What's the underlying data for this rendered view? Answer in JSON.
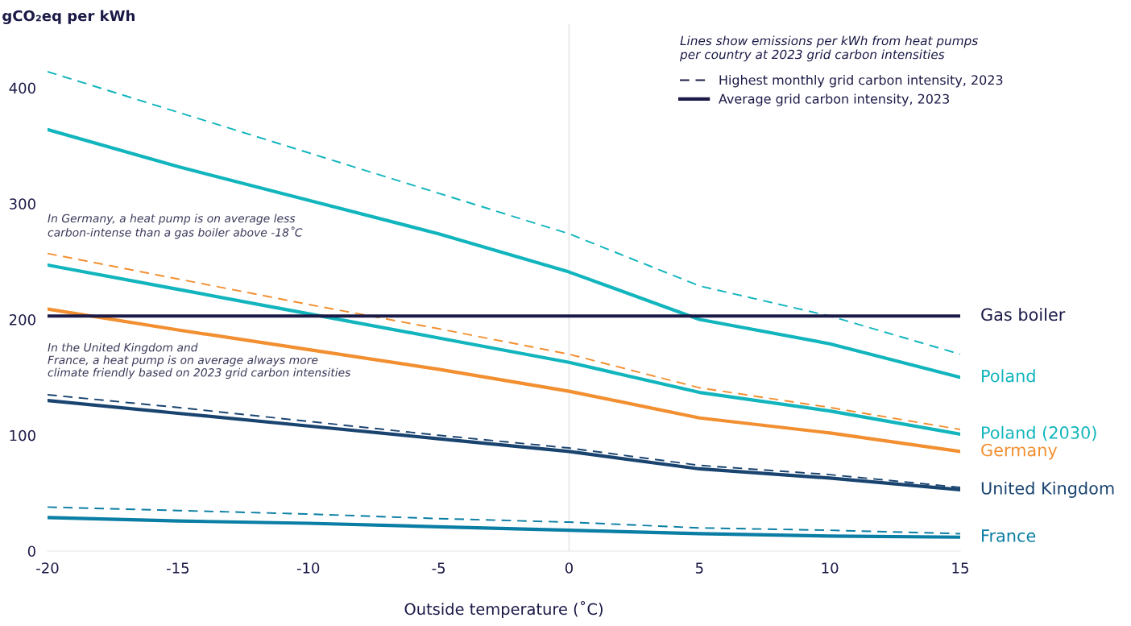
{
  "chart_data": {
    "type": "line",
    "xlabel": "Outside temperature (˚C)",
    "ylabel": "gCO₂eq per kWh",
    "x": [
      -20,
      -15,
      -10,
      -5,
      0,
      5,
      10,
      15
    ],
    "xlim": [
      -20,
      15
    ],
    "xticks": [
      -20,
      -15,
      -10,
      -5,
      0,
      5,
      10,
      15
    ],
    "ylim": [
      0,
      455
    ],
    "yticks": [
      0,
      100,
      200,
      300,
      400
    ],
    "grid": false,
    "legend": "right",
    "legend_title": "Lines show emissions per kWh from heat pumps\nper country at 2023 grid carbon intensities",
    "annotations": [
      "Highest monthly grid carbon intensity, 2023",
      "Average grid carbon intensity, 2023",
      "In Germany, a heat pump is on average less\ncarbon-intense than a gas boiler above -18˚C",
      "In the United Kingdom and\nFrance, a heat pump is on average always more\nclimate friendly based on 2023 grid carbon intensities"
    ],
    "ref_lines": [
      {
        "axis": "x",
        "value": 0,
        "color": "#e6e6e6"
      }
    ],
    "series": [
      {
        "color": "#12b5bd",
        "line_style": "dashed",
        "values": [
          414,
          379,
          344,
          309,
          274,
          229,
          203,
          170
        ]
      },
      {
        "name": "Poland",
        "color": "#12b5bd",
        "line_style": "solid",
        "values": [
          364,
          332,
          303,
          274,
          241,
          200,
          179,
          150
        ]
      },
      {
        "name": "Poland (2030)",
        "color": "#12b5bd",
        "line_style": "solid",
        "values": [
          247,
          226,
          205,
          184,
          163,
          137,
          121,
          101
        ]
      },
      {
        "color": "#f28f30",
        "line_style": "dashed",
        "values": [
          257,
          235,
          213,
          192,
          170,
          141,
          124,
          105
        ]
      },
      {
        "name": "Germany",
        "color": "#f28f30",
        "line_style": "solid",
        "values": [
          209,
          191,
          174,
          157,
          138,
          115,
          102,
          86
        ]
      },
      {
        "name": "Gas boiler",
        "color": "#1b1a47",
        "line_style": "solid",
        "values": [
          203,
          203,
          203,
          203,
          203,
          203,
          203,
          203
        ]
      },
      {
        "color": "#1a4470",
        "line_style": "dashed",
        "values": [
          135,
          124,
          112,
          100,
          89,
          74,
          66,
          55
        ]
      },
      {
        "name": "United Kingdom",
        "color": "#1a4470",
        "line_style": "solid",
        "values": [
          130,
          119,
          108,
          97,
          86,
          71,
          63,
          53
        ]
      },
      {
        "color": "#0a7ea4",
        "line_style": "dashed",
        "values": [
          38,
          35,
          32,
          28,
          25,
          20,
          18,
          15
        ]
      },
      {
        "name": "France",
        "color": "#0a7ea4",
        "line_style": "solid",
        "values": [
          29,
          26,
          24,
          21,
          18,
          15,
          13,
          12
        ]
      }
    ]
  }
}
